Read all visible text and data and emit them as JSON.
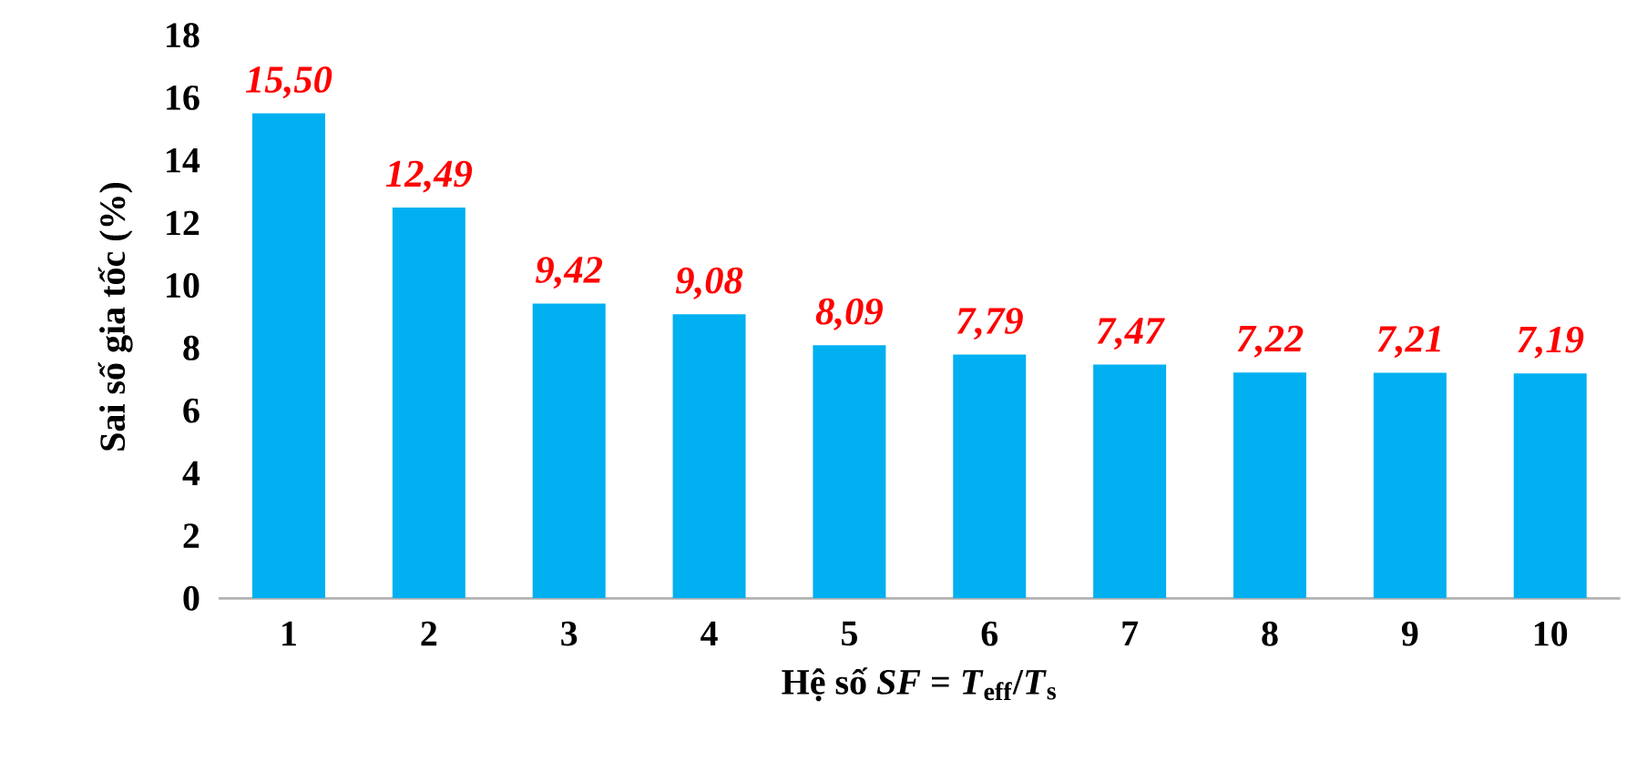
{
  "chart_data": {
    "type": "bar",
    "xlabel": "Hệ số *SF* = *T*$_{eff}$/*T*$_{s}$",
    "ylabel": "Sai số gia tốc (%)",
    "categories": [
      "1",
      "2",
      "3",
      "4",
      "5",
      "6",
      "7",
      "8",
      "9",
      "10"
    ],
    "values": [
      15.5,
      12.49,
      9.42,
      9.08,
      8.09,
      7.79,
      7.47,
      7.22,
      7.21,
      7.19
    ],
    "value_labels": [
      "15,50",
      "12,49",
      "9,42",
      "9,08",
      "8,09",
      "7,79",
      "7,47",
      "7,22",
      "7,21",
      "7,19"
    ],
    "color": "#00b0f0",
    "ylim": [
      0,
      18
    ],
    "yticks": [
      0,
      2,
      4,
      6,
      8,
      10,
      12,
      14,
      16,
      18
    ],
    "grid": false
  }
}
